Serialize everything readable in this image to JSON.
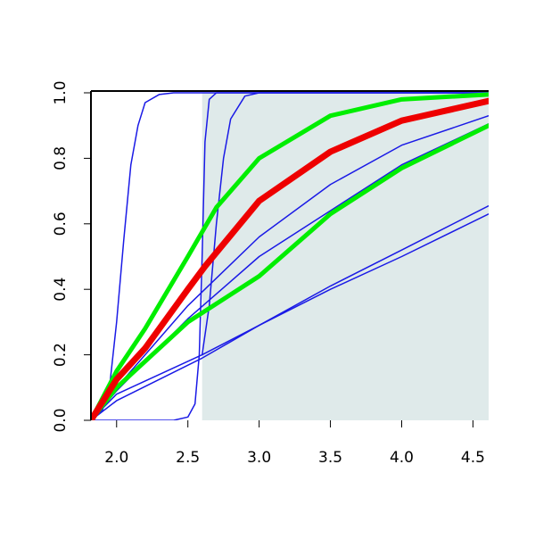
{
  "chart_data": {
    "type": "line",
    "xlim": [
      1.82,
      4.61
    ],
    "ylim": [
      0,
      1
    ],
    "xticks": [
      {
        "value": 2,
        "label": "2.0"
      },
      2.5,
      {
        "value": 3,
        "label": "3.0"
      },
      3.5,
      {
        "value": 4,
        "label": "4.0"
      },
      4.5
    ],
    "yticks": [
      {
        "value": 0,
        "label": "0.0"
      },
      0.2,
      0.4,
      0.6,
      0.8,
      {
        "value": 1,
        "label": "1.0"
      }
    ],
    "shaded_region": {
      "xmin": 2.6,
      "xmax": 4.61,
      "color": "#dfeaea"
    },
    "series": [
      {
        "color": "#1a1ae6",
        "width": 1.5,
        "x": [
          1.82,
          1.9,
          1.95,
          2.0,
          2.05,
          2.1,
          2.15,
          2.2,
          2.3,
          2.4,
          4.61
        ],
        "values": [
          0,
          0.03,
          0.1,
          0.3,
          0.55,
          0.78,
          0.9,
          0.97,
          0.995,
          1,
          1
        ]
      },
      {
        "color": "#1a1ae6",
        "width": 1.5,
        "x": [
          1.82,
          2.4,
          2.5,
          2.55,
          2.58,
          2.6,
          2.62,
          2.65,
          2.7,
          4.61
        ],
        "values": [
          0,
          0,
          0.01,
          0.05,
          0.2,
          0.5,
          0.85,
          0.98,
          1,
          1
        ]
      },
      {
        "color": "#1a1ae6",
        "width": 1.5,
        "x": [
          2.6,
          2.65,
          2.7,
          2.75,
          2.8,
          2.9,
          3.0,
          4.61
        ],
        "values": [
          0.2,
          0.35,
          0.6,
          0.8,
          0.92,
          0.99,
          1,
          1
        ]
      },
      {
        "color": "#1a1ae6",
        "width": 1.5,
        "x": [
          1.82,
          2.0,
          2.5,
          3.0,
          3.5,
          4.0,
          4.61
        ],
        "values": [
          0,
          0.1,
          0.35,
          0.56,
          0.72,
          0.84,
          0.93
        ]
      },
      {
        "color": "#1a1ae6",
        "width": 1.5,
        "x": [
          1.82,
          2.0,
          2.5,
          3.0,
          3.5,
          4.0,
          4.61
        ],
        "values": [
          0,
          0.09,
          0.31,
          0.5,
          0.64,
          0.78,
          0.905
        ]
      },
      {
        "color": "#1a1ae6",
        "width": 1.5,
        "x": [
          1.82,
          2.0,
          2.6,
          3.0,
          3.5,
          4.0,
          4.61
        ],
        "values": [
          0,
          0.06,
          0.19,
          0.29,
          0.41,
          0.52,
          0.655
        ]
      },
      {
        "color": "#1a1ae6",
        "width": 1.5,
        "x": [
          1.82,
          2.0,
          2.6,
          3.0,
          3.5,
          4.0,
          4.61
        ],
        "values": [
          0,
          0.08,
          0.2,
          0.29,
          0.4,
          0.5,
          0.63
        ]
      },
      {
        "color": "#00ee00",
        "width": 5,
        "x": [
          1.82,
          2.0,
          2.2,
          2.5,
          2.7,
          3.0,
          3.5,
          4.0,
          4.61
        ],
        "values": [
          0,
          0.15,
          0.28,
          0.5,
          0.65,
          0.8,
          0.93,
          0.98,
          0.995
        ]
      },
      {
        "color": "#00ee00",
        "width": 5,
        "x": [
          1.82,
          2.0,
          2.5,
          3.0,
          3.5,
          4.0,
          4.61
        ],
        "values": [
          0,
          0.1,
          0.3,
          0.44,
          0.63,
          0.77,
          0.9
        ]
      },
      {
        "color": "#ee0000",
        "width": 7,
        "x": [
          1.82,
          2.0,
          2.2,
          2.5,
          2.62,
          3.0,
          3.5,
          4.0,
          4.61
        ],
        "values": [
          0,
          0.125,
          0.22,
          0.4,
          0.47,
          0.67,
          0.82,
          0.915,
          0.975
        ]
      }
    ]
  }
}
